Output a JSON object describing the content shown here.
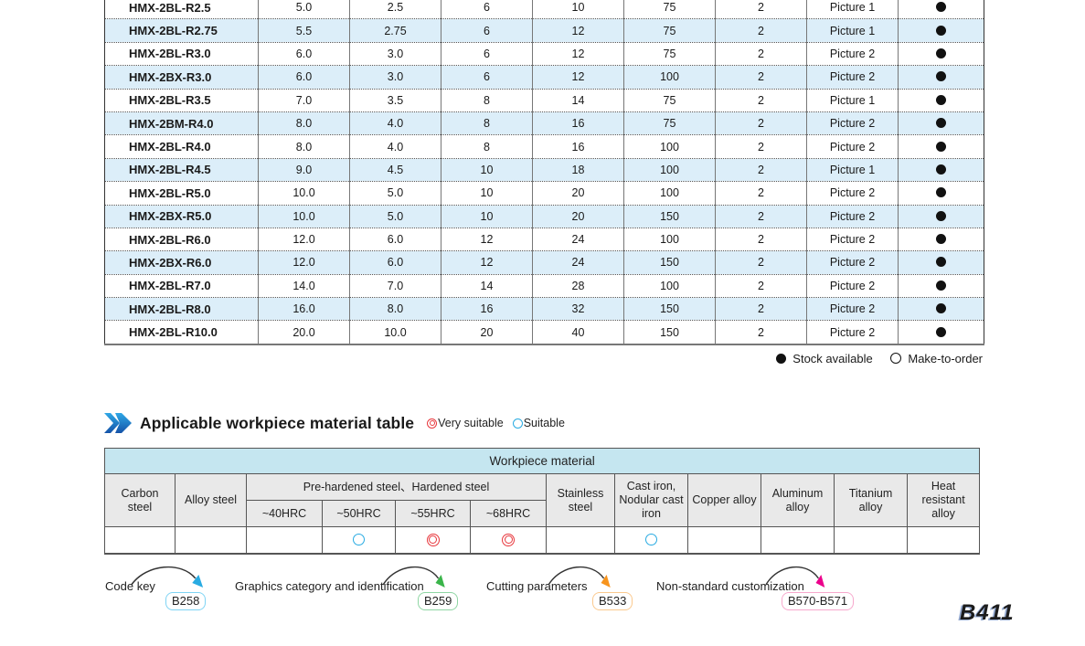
{
  "colors": {
    "accent_blue": "#29abe2",
    "rating_red": "#e8383d",
    "row_alt_blue": "#dceef9",
    "band_cyan": "#c5e6f0",
    "header_gray": "#e9e9e9"
  },
  "spec_table": {
    "rows": [
      {
        "model": "HMX-2BL-R2.5",
        "values": [
          "5.0",
          "2.5",
          "6",
          "10",
          "75",
          "2"
        ],
        "picture": "Picture 1",
        "stock": "stock-available"
      },
      {
        "model": "HMX-2BL-R2.75",
        "values": [
          "5.5",
          "2.75",
          "6",
          "12",
          "75",
          "2"
        ],
        "picture": "Picture 1",
        "stock": "stock-available"
      },
      {
        "model": "HMX-2BL-R3.0",
        "values": [
          "6.0",
          "3.0",
          "6",
          "12",
          "75",
          "2"
        ],
        "picture": "Picture 2",
        "stock": "stock-available"
      },
      {
        "model": "HMX-2BX-R3.0",
        "values": [
          "6.0",
          "3.0",
          "6",
          "12",
          "100",
          "2"
        ],
        "picture": "Picture 2",
        "stock": "stock-available"
      },
      {
        "model": "HMX-2BL-R3.5",
        "values": [
          "7.0",
          "3.5",
          "8",
          "14",
          "75",
          "2"
        ],
        "picture": "Picture 1",
        "stock": "stock-available"
      },
      {
        "model": "HMX-2BM-R4.0",
        "values": [
          "8.0",
          "4.0",
          "8",
          "16",
          "75",
          "2"
        ],
        "picture": "Picture 2",
        "stock": "stock-available"
      },
      {
        "model": "HMX-2BL-R4.0",
        "values": [
          "8.0",
          "4.0",
          "8",
          "16",
          "100",
          "2"
        ],
        "picture": "Picture 2",
        "stock": "stock-available"
      },
      {
        "model": "HMX-2BL-R4.5",
        "values": [
          "9.0",
          "4.5",
          "10",
          "18",
          "100",
          "2"
        ],
        "picture": "Picture 1",
        "stock": "stock-available"
      },
      {
        "model": "HMX-2BL-R5.0",
        "values": [
          "10.0",
          "5.0",
          "10",
          "20",
          "100",
          "2"
        ],
        "picture": "Picture 2",
        "stock": "stock-available"
      },
      {
        "model": "HMX-2BX-R5.0",
        "values": [
          "10.0",
          "5.0",
          "10",
          "20",
          "150",
          "2"
        ],
        "picture": "Picture 2",
        "stock": "stock-available"
      },
      {
        "model": "HMX-2BL-R6.0",
        "values": [
          "12.0",
          "6.0",
          "12",
          "24",
          "100",
          "2"
        ],
        "picture": "Picture 2",
        "stock": "stock-available"
      },
      {
        "model": "HMX-2BX-R6.0",
        "values": [
          "12.0",
          "6.0",
          "12",
          "24",
          "150",
          "2"
        ],
        "picture": "Picture 2",
        "stock": "stock-available"
      },
      {
        "model": "HMX-2BL-R7.0",
        "values": [
          "14.0",
          "7.0",
          "14",
          "28",
          "100",
          "2"
        ],
        "picture": "Picture 2",
        "stock": "stock-available"
      },
      {
        "model": "HMX-2BL-R8.0",
        "values": [
          "16.0",
          "8.0",
          "16",
          "32",
          "150",
          "2"
        ],
        "picture": "Picture 2",
        "stock": "stock-available"
      },
      {
        "model": "HMX-2BL-R10.0",
        "values": [
          "20.0",
          "10.0",
          "20",
          "40",
          "150",
          "2"
        ],
        "picture": "Picture 2",
        "stock": "stock-available"
      }
    ],
    "legend": {
      "stock_available": "Stock available",
      "make_to_order": "Make-to-order"
    }
  },
  "material_section": {
    "title": "Applicable workpiece material table",
    "legend": {
      "very_suitable": "Very suitable",
      "suitable": "Suitable"
    },
    "table": {
      "band_title": "Workpiece material",
      "group_header": "Pre-hardened steel、Hardened steel",
      "columns": [
        "Carbon steel",
        "Alloy steel",
        "~40HRC",
        "~50HRC",
        "~55HRC",
        "~68HRC",
        "Stainless steel",
        "Cast iron, Nodular cast iron",
        "Copper alloy",
        "Aluminum alloy",
        "Titanium alloy",
        "Heat resistant alloy"
      ],
      "ratings": [
        "",
        "",
        "",
        "suitable",
        "very",
        "very",
        "",
        "suitable",
        "",
        "",
        "",
        ""
      ]
    }
  },
  "footer": {
    "annotations": [
      {
        "label": "Code key",
        "page": "B258",
        "color": "#29abe2",
        "badge_border": "#7fd4f4"
      },
      {
        "label": "Graphics category and identification",
        "page": "B259",
        "color": "#3ab54a",
        "badge_border": "#8fd6a4"
      },
      {
        "label": "Cutting parameters",
        "page": "B533",
        "color": "#f7941e",
        "badge_border": "#fbc98e"
      },
      {
        "label": "Non-standard customization",
        "page": "B570-B571",
        "color": "#ec008c",
        "badge_border": "#f7a8cd"
      }
    ],
    "page_number": "B411"
  }
}
